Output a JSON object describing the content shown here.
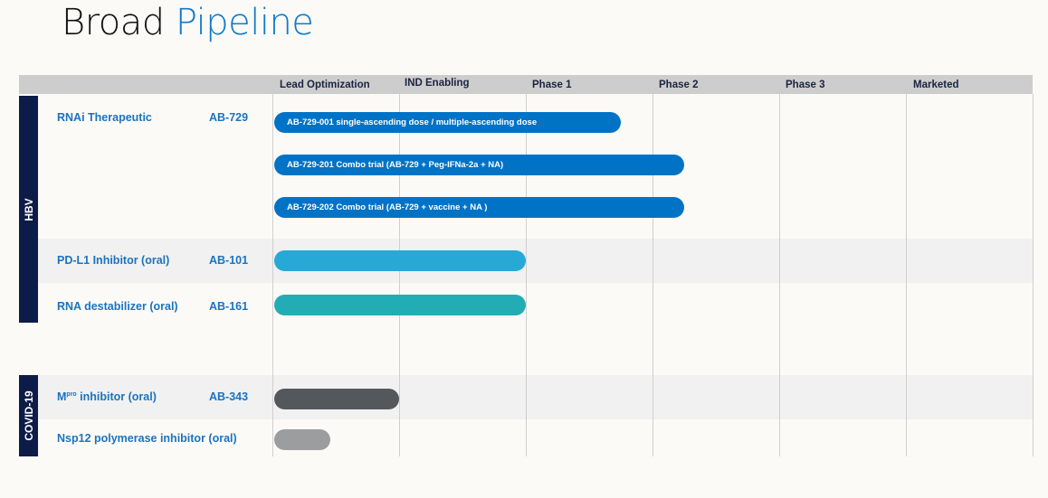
{
  "title": {
    "part1": "Broad",
    "part2": "Pipeline"
  },
  "chart_data": {
    "type": "bar",
    "orientation": "horizontal",
    "categories": [
      "Lead Optimization",
      "IND Enabling",
      "Phase 1",
      "Phase 2",
      "Phase 3",
      "Marketed"
    ],
    "xlabel": "",
    "ylabel": "",
    "xlim": [
      0,
      6
    ],
    "groups": [
      {
        "name": "HBV",
        "programs": [
          {
            "label": "RNAi Therapeutic",
            "code": "AB-729",
            "trials": [
              {
                "text": "AB-729-001 single-ascending dose / multiple-ascending dose",
                "progress": 2.75,
                "color": "#0073c6"
              },
              {
                "text": "AB-729-201 Combo trial (AB-729 + Peg-IFNa-2a + NA)",
                "progress": 3.25,
                "color": "#0073c6"
              },
              {
                "text": "AB-729-202 Combo trial (AB-729 + vaccine + NA )",
                "progress": 3.25,
                "color": "#0073c6"
              }
            ]
          },
          {
            "label": "PD-L1 Inhibitor (oral)",
            "code": "AB-101",
            "trials": [
              {
                "text": "",
                "progress": 2.0,
                "color": "#26a9d7"
              }
            ]
          },
          {
            "label": "RNA destabilizer (oral)",
            "code": "AB-161",
            "trials": [
              {
                "text": "",
                "progress": 2.0,
                "color": "#22acb4"
              }
            ]
          }
        ]
      },
      {
        "name": "COVID-19",
        "programs": [
          {
            "label": "M",
            "label_sup": "pro",
            "label_rest": " inhibitor (oral)",
            "code": "AB-343",
            "trials": [
              {
                "text": "",
                "progress": 1.0,
                "color": "#54585c"
              }
            ]
          },
          {
            "label": "Nsp12 polymerase inhibitor (oral)",
            "code": "",
            "trials": [
              {
                "text": "",
                "progress": 0.46,
                "color": "#9b9d9f"
              }
            ]
          }
        ]
      }
    ]
  }
}
